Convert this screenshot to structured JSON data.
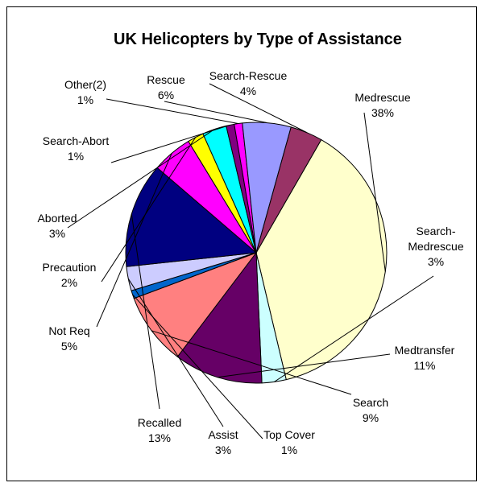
{
  "chart_data": {
    "type": "pie",
    "title": "UK Helicopters by Type of Assistance",
    "slices": [
      {
        "name": "Medrescue",
        "value": 38,
        "label": "38%",
        "color": "#FFFFCC"
      },
      {
        "name": "Search-\nMedrescue",
        "value": 3,
        "label": "3%",
        "color": "#CCFFFF"
      },
      {
        "name": "Medtransfer",
        "value": 11,
        "label": "11%",
        "color": "#660066"
      },
      {
        "name": "Search",
        "value": 9,
        "label": "9%",
        "color": "#FF8080"
      },
      {
        "name": "Top Cover",
        "value": 1,
        "label": "1%",
        "color": "#0066CC"
      },
      {
        "name": "Assist",
        "value": 3,
        "label": "3%",
        "color": "#CCCCFF"
      },
      {
        "name": "Recalled",
        "value": 13,
        "label": "13%",
        "color": "#000080"
      },
      {
        "name": "Not Req",
        "value": 5,
        "label": "5%",
        "color": "#FF00FF"
      },
      {
        "name": "Precaution",
        "value": 2,
        "label": "2%",
        "color": "#FFFF00"
      },
      {
        "name": "Aborted",
        "value": 3,
        "label": "3%",
        "color": "#00FFFF"
      },
      {
        "name": "Search-Abort",
        "value": 1,
        "label": "1%",
        "color": "#800080"
      },
      {
        "name": "Other(2)",
        "value": 1,
        "label": "1%",
        "color": "#FF00FF"
      },
      {
        "name": "Rescue",
        "value": 6,
        "label": "6%",
        "color": "#9999FF"
      },
      {
        "name": "Search-Rescue",
        "value": 4,
        "label": "4%",
        "color": "#993366"
      }
    ],
    "legend": "none"
  }
}
